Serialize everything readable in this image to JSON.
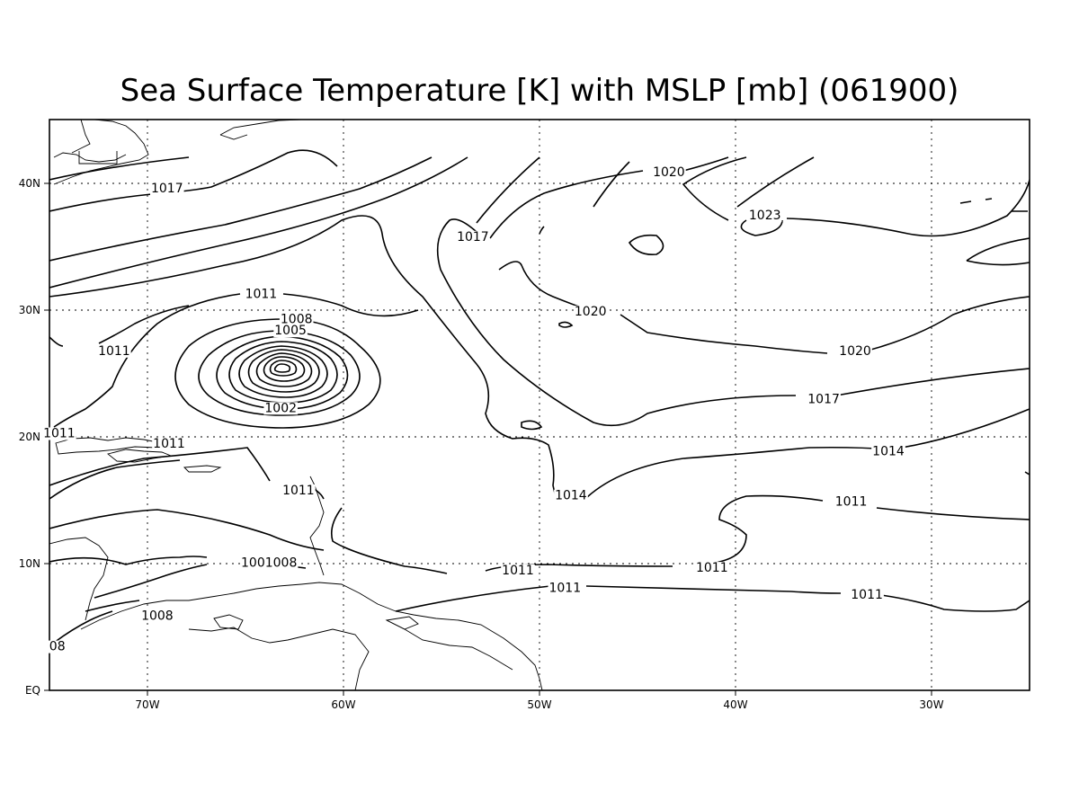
{
  "title": "Sea Surface Temperature [K] with MSLP [mb] (061900)",
  "axes": {
    "lon_ticks": [
      "70W",
      "60W",
      "50W",
      "40W",
      "30W"
    ],
    "lat_ticks": [
      "EQ",
      "10N",
      "20N",
      "30N",
      "40N"
    ],
    "lon_range": [
      -75,
      -25
    ],
    "lat_range": [
      0,
      45
    ]
  },
  "contour_labels": [
    {
      "text": "1017",
      "lon": -69.0,
      "lat": 39.6
    },
    {
      "text": "1017",
      "lon": -53.4,
      "lat": 35.8
    },
    {
      "text": "1020",
      "lon": -43.4,
      "lat": 40.9
    },
    {
      "text": "1023",
      "lon": -38.5,
      "lat": 37.5
    },
    {
      "text": "1020",
      "lon": -47.4,
      "lat": 29.9
    },
    {
      "text": "1020",
      "lon": -33.9,
      "lat": 26.8
    },
    {
      "text": "1017",
      "lon": -35.5,
      "lat": 23.0
    },
    {
      "text": "1014",
      "lon": -32.2,
      "lat": 18.9
    },
    {
      "text": "1014",
      "lon": -48.4,
      "lat": 15.4
    },
    {
      "text": "1011",
      "lon": -34.1,
      "lat": 14.9
    },
    {
      "text": "1011",
      "lon": -51.1,
      "lat": 9.5
    },
    {
      "text": "1011",
      "lon": -41.2,
      "lat": 9.7
    },
    {
      "text": "1011",
      "lon": -48.7,
      "lat": 8.1
    },
    {
      "text": "1011",
      "lon": -33.3,
      "lat": 7.6
    },
    {
      "text": "1011",
      "lon": -71.7,
      "lat": 26.8
    },
    {
      "text": "1011",
      "lon": -64.2,
      "lat": 31.3
    },
    {
      "text": "1008",
      "lon": -62.4,
      "lat": 29.3
    },
    {
      "text": "1005",
      "lon": -62.7,
      "lat": 28.4
    },
    {
      "text": "1002",
      "lon": -63.2,
      "lat": 22.3
    },
    {
      "text": "1011",
      "lon": -74.5,
      "lat": 20.3
    },
    {
      "text": "1011",
      "lon": -68.9,
      "lat": 19.5
    },
    {
      "text": "1011",
      "lon": -62.3,
      "lat": 15.8
    },
    {
      "text": "1001008",
      "lon": -63.8,
      "lat": 10.1
    },
    {
      "text": "1008",
      "lon": -69.5,
      "lat": 5.9
    },
    {
      "text": "08",
      "lon": -74.6,
      "lat": 3.5
    }
  ],
  "styles": {
    "line_color": "#000000",
    "background": "#ffffff"
  }
}
